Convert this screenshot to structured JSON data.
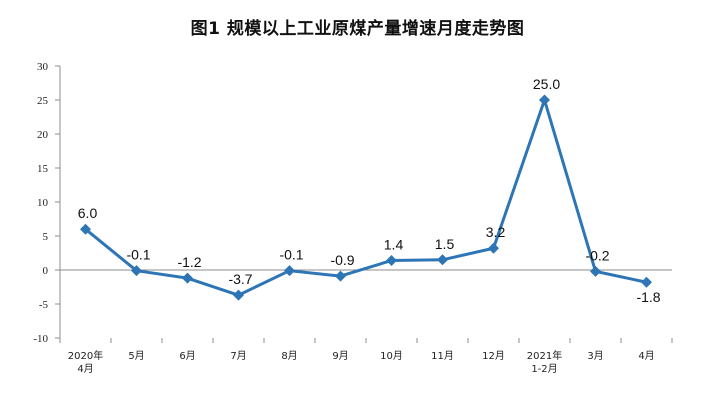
{
  "chart_data": {
    "type": "line",
    "title": "图1  规模以上工业原煤产量增速月度走势图",
    "xlabel": "",
    "ylabel": "",
    "ylim": [
      -10,
      30
    ],
    "yticks": [
      -10,
      -5,
      0,
      5,
      10,
      15,
      20,
      25,
      30
    ],
    "categories": [
      [
        "2020年",
        "4月"
      ],
      [
        "5月"
      ],
      [
        "6月"
      ],
      [
        "7月"
      ],
      [
        "8月"
      ],
      [
        "9月"
      ],
      [
        "10月"
      ],
      [
        "11月"
      ],
      [
        "12月"
      ],
      [
        "2021年",
        "1-2月"
      ],
      [
        "3月"
      ],
      [
        "4月"
      ]
    ],
    "series": [
      {
        "values": [
          6.0,
          -0.1,
          -1.2,
          -3.7,
          -0.1,
          -0.9,
          1.4,
          1.5,
          3.2,
          25.0,
          -0.2,
          -1.8
        ],
        "labels": [
          "6.0",
          "-0.1",
          "-1.2",
          "-3.7",
          "-0.1",
          "-0.9",
          "1.4",
          "1.5",
          "3.2",
          "25.0",
          "-0.2",
          "-1.8"
        ],
        "color": "#2E75B6"
      }
    ],
    "grid": false,
    "legend": "none"
  }
}
